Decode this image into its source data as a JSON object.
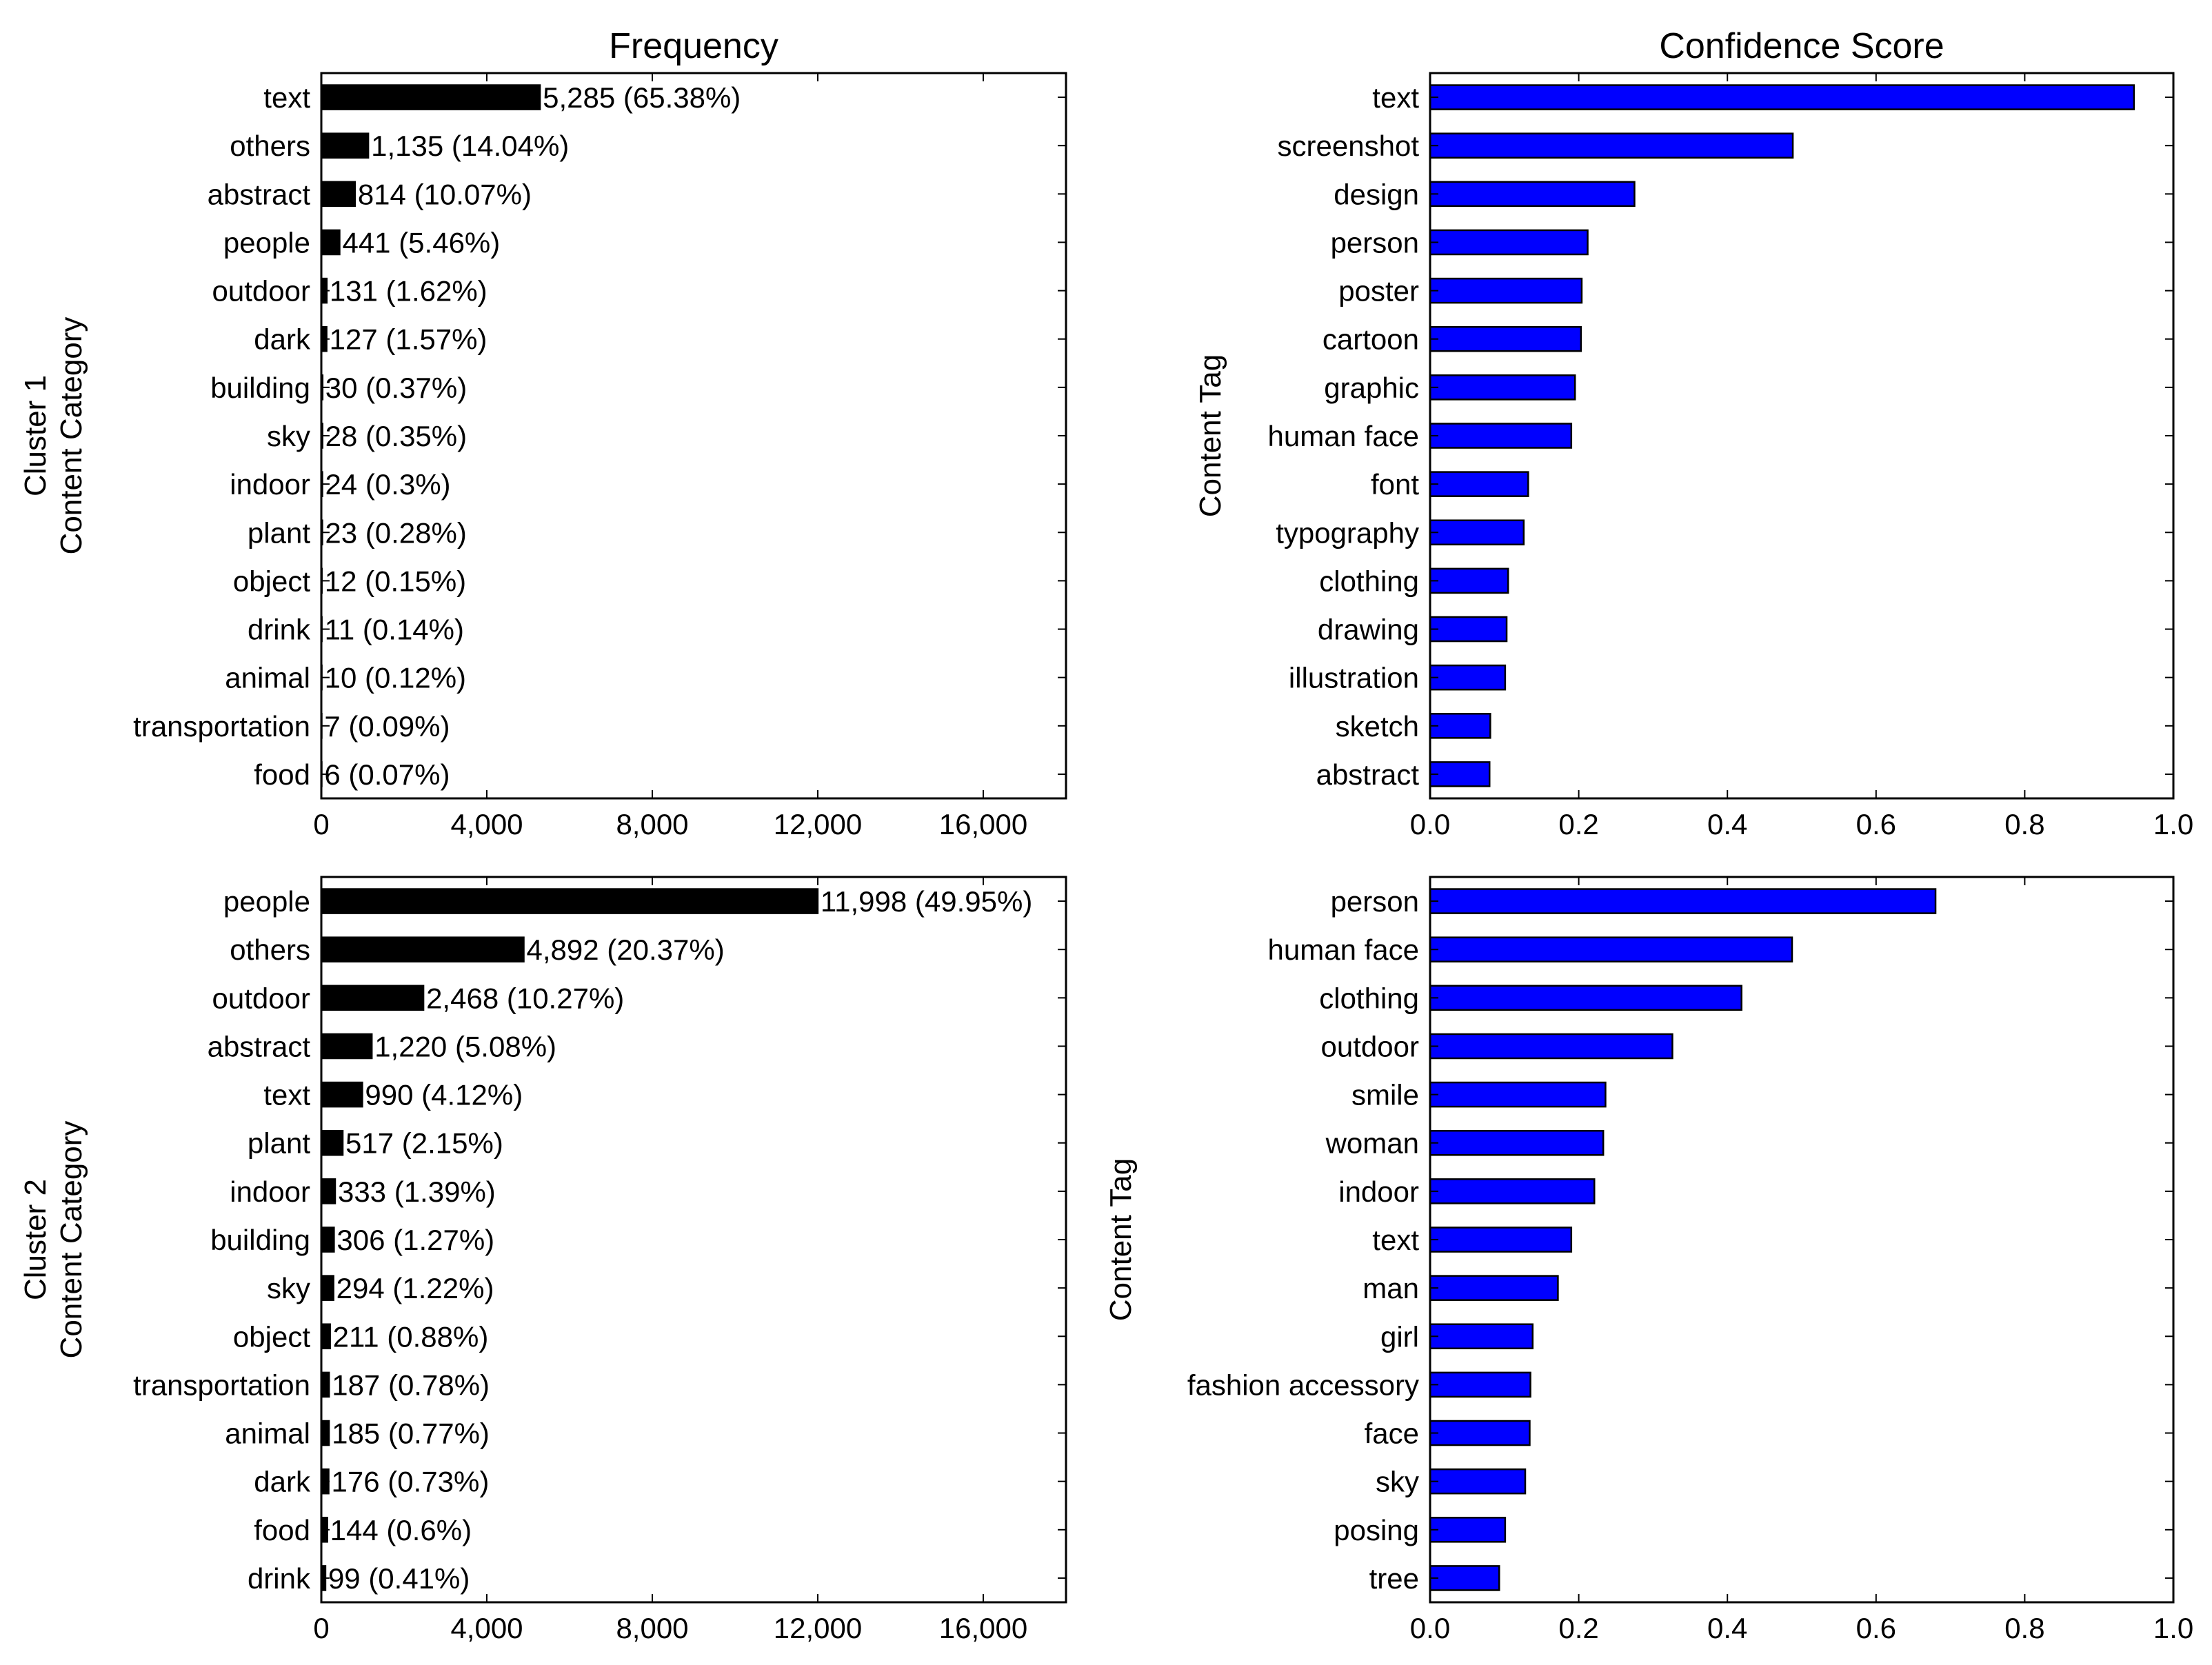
{
  "charts": [
    {
      "type": "bar",
      "orientation": "horizontal",
      "title": "Frequency",
      "ylabel_lines": [
        "Cluster 1",
        "Content Category"
      ],
      "bar_color": "#000000",
      "xlim": [
        0,
        18000
      ],
      "xticks": [
        0,
        4000,
        8000,
        12000,
        16000
      ],
      "xtick_labels": [
        "0",
        "4,000",
        "8,000",
        "12,000",
        "16,000"
      ],
      "categories": [
        "text",
        "others",
        "abstract",
        "people",
        "outdoor",
        "dark",
        "building",
        "sky",
        "indoor",
        "plant",
        "object",
        "drink",
        "animal",
        "transportation",
        "food"
      ],
      "values": [
        5285,
        1135,
        814,
        441,
        131,
        127,
        30,
        28,
        24,
        23,
        12,
        11,
        10,
        7,
        6
      ],
      "value_labels": [
        "5,285 (65.38%)",
        "1,135 (14.04%)",
        "814 (10.07%)",
        "441 (5.46%)",
        "131 (1.62%)",
        "127 (1.57%)",
        "30 (0.37%)",
        "28 (0.35%)",
        "24 (0.3%)",
        "23 (0.28%)",
        "12 (0.15%)",
        "11 (0.14%)",
        "10 (0.12%)",
        "7 (0.09%)",
        "6 (0.07%)"
      ]
    },
    {
      "type": "bar",
      "orientation": "horizontal",
      "title": "Confidence Score",
      "ylabel_lines": [
        "Content Tag"
      ],
      "bar_color": "#0000ff",
      "xlim": [
        0,
        1.0
      ],
      "xticks": [
        0,
        0.2,
        0.4,
        0.6,
        0.8,
        1.0
      ],
      "xtick_labels": [
        "0.0",
        "0.2",
        "0.4",
        "0.6",
        "0.8",
        "1.0"
      ],
      "categories": [
        "text",
        "screenshot",
        "design",
        "person",
        "poster",
        "cartoon",
        "graphic",
        "human face",
        "font",
        "typography",
        "clothing",
        "drawing",
        "illustration",
        "sketch",
        "abstract"
      ],
      "values": [
        0.947,
        0.488,
        0.275,
        0.212,
        0.204,
        0.203,
        0.195,
        0.19,
        0.132,
        0.126,
        0.105,
        0.103,
        0.101,
        0.081,
        0.08
      ],
      "value_labels": []
    },
    {
      "type": "bar",
      "orientation": "horizontal",
      "title": "",
      "ylabel_lines": [
        "Cluster 2",
        "Content Category"
      ],
      "bar_color": "#000000",
      "xlim": [
        0,
        18000
      ],
      "xticks": [
        0,
        4000,
        8000,
        12000,
        16000
      ],
      "xtick_labels": [
        "0",
        "4,000",
        "8,000",
        "12,000",
        "16,000"
      ],
      "categories": [
        "people",
        "others",
        "outdoor",
        "abstract",
        "text",
        "plant",
        "indoor",
        "building",
        "sky",
        "object",
        "transportation",
        "animal",
        "dark",
        "food",
        "drink"
      ],
      "values": [
        11998,
        4892,
        2468,
        1220,
        990,
        517,
        333,
        306,
        294,
        211,
        187,
        185,
        176,
        144,
        99
      ],
      "value_labels": [
        "11,998 (49.95%)",
        "4,892 (20.37%)",
        "2,468 (10.27%)",
        "1,220 (5.08%)",
        "990 (4.12%)",
        "517 (2.15%)",
        "333 (1.39%)",
        "306 (1.27%)",
        "294 (1.22%)",
        "211 (0.88%)",
        "187 (0.78%)",
        "185 (0.77%)",
        "176 (0.73%)",
        "144 (0.6%)",
        "99 (0.41%)"
      ]
    },
    {
      "type": "bar",
      "orientation": "horizontal",
      "title": "",
      "ylabel_lines": [
        "Content Tag"
      ],
      "bar_color": "#0000ff",
      "xlim": [
        0,
        1.0
      ],
      "xticks": [
        0,
        0.2,
        0.4,
        0.6,
        0.8,
        1.0
      ],
      "xtick_labels": [
        "0.0",
        "0.2",
        "0.4",
        "0.6",
        "0.8",
        "1.0"
      ],
      "categories": [
        "person",
        "human face",
        "clothing",
        "outdoor",
        "smile",
        "woman",
        "indoor",
        "text",
        "man",
        "girl",
        "fashion accessory",
        "face",
        "sky",
        "posing",
        "tree"
      ],
      "values": [
        0.68,
        0.487,
        0.419,
        0.326,
        0.236,
        0.233,
        0.221,
        0.19,
        0.172,
        0.138,
        0.135,
        0.134,
        0.128,
        0.101,
        0.093
      ],
      "value_labels": []
    }
  ]
}
